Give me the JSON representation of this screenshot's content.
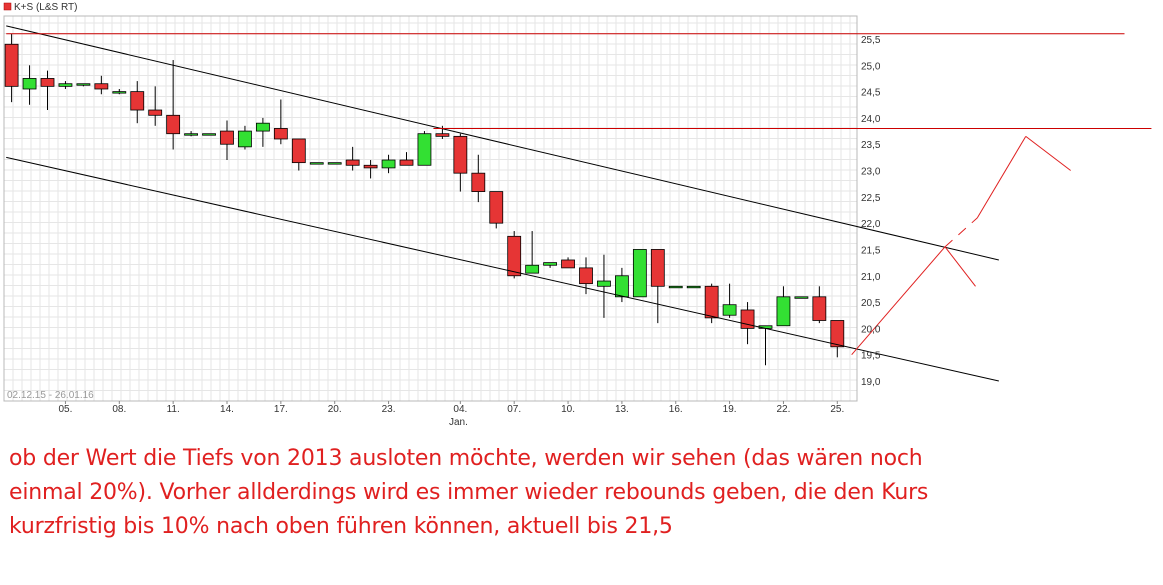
{
  "chart_data": {
    "type": "candlestick",
    "title": "K+S (L&S RT)",
    "date_range": "02.12.15 - 26.01.16",
    "ylim": [
      18.8,
      25.8
    ],
    "y_ticks": [
      "25,5",
      "25,0",
      "24,5",
      "24,0",
      "23,5",
      "23,0",
      "22,5",
      "22,0",
      "21,5",
      "21,0",
      "20,5",
      "20,0",
      "19,5",
      "19,0"
    ],
    "x_ticks": [
      "05.",
      "08.",
      "11.",
      "14.",
      "17.",
      "20.",
      "23.",
      "04.",
      "07.",
      "10.",
      "13.",
      "16.",
      "19.",
      "22.",
      "25."
    ],
    "x_tick_positions": [
      3,
      6,
      9,
      12,
      15,
      18,
      21,
      25,
      28,
      31,
      34,
      37,
      40,
      43,
      46
    ],
    "x_sub_label": "Jan.",
    "grid": true,
    "colors": {
      "up": "#33e033",
      "down": "#e63535",
      "trend": "#000000",
      "resistance": "#cc0000",
      "text": "#e02020"
    },
    "candles": [
      {
        "x": 0,
        "o": 25.4,
        "h": 25.6,
        "l": 24.3,
        "c": 24.6
      },
      {
        "x": 1,
        "o": 24.55,
        "h": 25.0,
        "l": 24.25,
        "c": 24.75
      },
      {
        "x": 2,
        "o": 24.75,
        "h": 24.9,
        "l": 24.15,
        "c": 24.6
      },
      {
        "x": 3,
        "o": 24.6,
        "h": 24.7,
        "l": 24.55,
        "c": 24.65
      },
      {
        "x": 4,
        "o": 24.65,
        "h": 24.65,
        "l": 24.6,
        "c": 24.65
      },
      {
        "x": 5,
        "o": 24.65,
        "h": 24.8,
        "l": 24.45,
        "c": 24.55
      },
      {
        "x": 6,
        "o": 24.5,
        "h": 24.55,
        "l": 24.45,
        "c": 24.5
      },
      {
        "x": 7,
        "o": 24.5,
        "h": 24.7,
        "l": 23.9,
        "c": 24.15
      },
      {
        "x": 8,
        "o": 24.15,
        "h": 24.6,
        "l": 23.85,
        "c": 24.05
      },
      {
        "x": 9,
        "o": 24.05,
        "h": 25.1,
        "l": 23.4,
        "c": 23.7
      },
      {
        "x": 10,
        "o": 23.7,
        "h": 23.75,
        "l": 23.65,
        "c": 23.7
      },
      {
        "x": 11,
        "o": 23.7,
        "h": 23.7,
        "l": 23.7,
        "c": 23.7
      },
      {
        "x": 12,
        "o": 23.75,
        "h": 23.95,
        "l": 23.2,
        "c": 23.5
      },
      {
        "x": 13,
        "o": 23.45,
        "h": 23.85,
        "l": 23.4,
        "c": 23.75
      },
      {
        "x": 14,
        "o": 23.75,
        "h": 24.0,
        "l": 23.45,
        "c": 23.9
      },
      {
        "x": 15,
        "o": 23.8,
        "h": 24.35,
        "l": 23.5,
        "c": 23.6
      },
      {
        "x": 16,
        "o": 23.6,
        "h": 23.6,
        "l": 23.0,
        "c": 23.15
      },
      {
        "x": 17,
        "o": 23.15,
        "h": 23.15,
        "l": 23.15,
        "c": 23.15
      },
      {
        "x": 18,
        "o": 23.15,
        "h": 23.15,
        "l": 23.15,
        "c": 23.15
      },
      {
        "x": 19,
        "o": 23.2,
        "h": 23.45,
        "l": 23.0,
        "c": 23.1
      },
      {
        "x": 20,
        "o": 23.1,
        "h": 23.2,
        "l": 22.85,
        "c": 23.05
      },
      {
        "x": 21,
        "o": 23.05,
        "h": 23.3,
        "l": 22.95,
        "c": 23.2
      },
      {
        "x": 22,
        "o": 23.2,
        "h": 23.35,
        "l": 23.1,
        "c": 23.1
      },
      {
        "x": 23,
        "o": 23.1,
        "h": 23.75,
        "l": 23.1,
        "c": 23.7
      },
      {
        "x": 24,
        "o": 23.7,
        "h": 23.85,
        "l": 23.6,
        "c": 23.65
      },
      {
        "x": 25,
        "o": 23.65,
        "h": 23.7,
        "l": 22.6,
        "c": 22.95
      },
      {
        "x": 26,
        "o": 22.95,
        "h": 23.3,
        "l": 22.4,
        "c": 22.6
      },
      {
        "x": 27,
        "o": 22.6,
        "h": 22.6,
        "l": 21.9,
        "c": 22.0
      },
      {
        "x": 28,
        "o": 21.75,
        "h": 21.85,
        "l": 20.95,
        "c": 21.0
      },
      {
        "x": 29,
        "o": 21.05,
        "h": 21.85,
        "l": 21.05,
        "c": 21.2
      },
      {
        "x": 30,
        "o": 21.2,
        "h": 21.25,
        "l": 21.15,
        "c": 21.25
      },
      {
        "x": 31,
        "o": 21.3,
        "h": 21.35,
        "l": 21.15,
        "c": 21.15
      },
      {
        "x": 32,
        "o": 21.15,
        "h": 21.35,
        "l": 20.65,
        "c": 20.85
      },
      {
        "x": 33,
        "o": 20.8,
        "h": 21.4,
        "l": 20.2,
        "c": 20.9
      },
      {
        "x": 34,
        "o": 20.6,
        "h": 21.15,
        "l": 20.5,
        "c": 21.0
      },
      {
        "x": 35,
        "o": 20.6,
        "h": 21.5,
        "l": 20.6,
        "c": 21.5
      },
      {
        "x": 36,
        "o": 21.5,
        "h": 21.5,
        "l": 20.1,
        "c": 20.8
      },
      {
        "x": 37,
        "o": 20.8,
        "h": 20.8,
        "l": 20.8,
        "c": 20.8
      },
      {
        "x": 38,
        "o": 20.8,
        "h": 20.8,
        "l": 20.8,
        "c": 20.8
      },
      {
        "x": 39,
        "o": 20.8,
        "h": 20.85,
        "l": 20.1,
        "c": 20.2
      },
      {
        "x": 40,
        "o": 20.25,
        "h": 20.85,
        "l": 20.2,
        "c": 20.45
      },
      {
        "x": 41,
        "o": 20.35,
        "h": 20.5,
        "l": 19.7,
        "c": 20.0
      },
      {
        "x": 42,
        "o": 20.0,
        "h": 20.05,
        "l": 19.3,
        "c": 20.05
      },
      {
        "x": 43,
        "o": 20.05,
        "h": 20.8,
        "l": 20.05,
        "c": 20.6
      },
      {
        "x": 44,
        "o": 20.6,
        "h": 20.6,
        "l": 20.6,
        "c": 20.6
      },
      {
        "x": 45,
        "o": 20.6,
        "h": 20.8,
        "l": 20.1,
        "c": 20.15
      },
      {
        "x": 46,
        "o": 20.15,
        "h": 20.15,
        "l": 19.45,
        "c": 19.65
      }
    ],
    "trend_lines": [
      {
        "from": [
          -0.3,
          25.75
        ],
        "to": [
          55.0,
          21.3
        ]
      },
      {
        "from": [
          -0.3,
          23.25
        ],
        "to": [
          55.0,
          19.0
        ]
      }
    ],
    "horizontal_lines": [
      {
        "y": 25.6,
        "from_x": -0.3,
        "to_x": 62.0
      },
      {
        "y": 23.8,
        "from_x": 23.5,
        "to_x": 63.5
      }
    ],
    "projection": [
      {
        "points": [
          [
            46.8,
            19.5
          ],
          [
            52.0,
            21.55
          ]
        ]
      },
      {
        "points": [
          [
            52.0,
            21.55
          ],
          [
            53.7,
            20.8
          ]
        ]
      },
      {
        "points": [
          [
            52.0,
            21.55
          ],
          [
            53.8,
            22.1
          ]
        ],
        "dashed": true
      },
      {
        "points": [
          [
            53.8,
            22.1
          ],
          [
            56.5,
            23.65
          ]
        ]
      },
      {
        "points": [
          [
            56.5,
            23.65
          ],
          [
            59.0,
            23.0
          ]
        ]
      }
    ]
  },
  "comment": {
    "lines": [
      "ob der Wert die Tiefs von 2013 ausloten möchte, werden wir sehen (das wären noch",
      "einmal 20%). Vorher allderdings wird es immer wieder rebounds geben, die den Kurs",
      "kurzfristig bis 10% nach oben führen können, aktuell bis 21,5"
    ]
  }
}
